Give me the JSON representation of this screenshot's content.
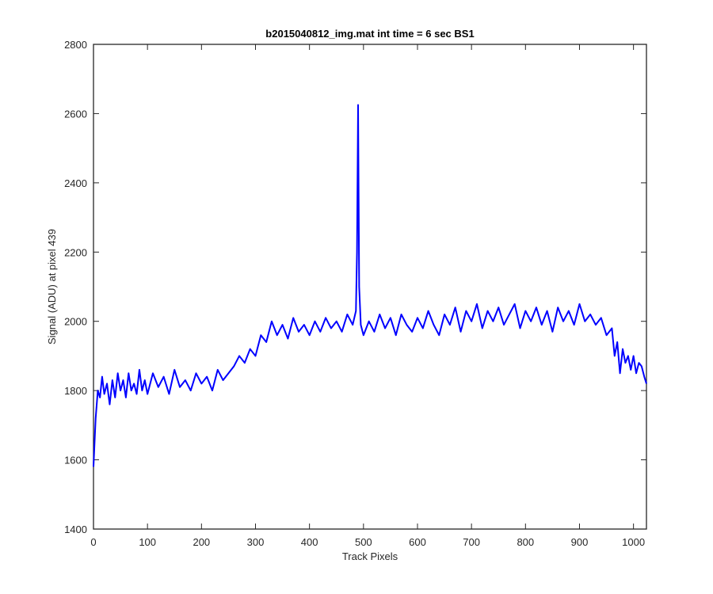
{
  "chart_data": {
    "type": "line",
    "title": "b2015040812_img.mat int time = 6 sec   BS1",
    "xlabel": "Track Pixels",
    "ylabel": "Signal (ADU) at pixel 439",
    "xlim": [
      0,
      1024
    ],
    "ylim": [
      1400,
      2800
    ],
    "xticks": [
      0,
      100,
      200,
      300,
      400,
      500,
      600,
      700,
      800,
      900,
      1000
    ],
    "yticks": [
      1400,
      1600,
      1800,
      2000,
      2200,
      2400,
      2600,
      2800
    ],
    "grid": false,
    "line_color": "#0000ff",
    "series": [
      {
        "x": [
          0,
          2,
          4,
          6,
          8,
          12,
          16,
          20,
          25,
          30,
          35,
          40,
          45,
          50,
          55,
          60,
          65,
          70,
          75,
          80,
          85,
          90,
          95,
          100,
          110,
          120,
          130,
          140,
          150,
          160,
          170,
          180,
          190,
          200,
          210,
          220,
          230,
          240,
          250,
          260,
          270,
          280,
          290,
          300,
          310,
          320,
          330,
          340,
          350,
          360,
          370,
          380,
          390,
          400,
          410,
          420,
          430,
          440,
          450,
          460,
          470,
          480,
          486,
          488,
          490,
          492,
          495,
          500,
          510,
          520,
          530,
          540,
          550,
          560,
          570,
          580,
          590,
          600,
          610,
          620,
          630,
          640,
          650,
          660,
          670,
          680,
          690,
          700,
          710,
          720,
          730,
          740,
          750,
          760,
          770,
          780,
          790,
          800,
          810,
          820,
          830,
          840,
          850,
          860,
          870,
          880,
          890,
          900,
          910,
          920,
          930,
          940,
          950,
          960,
          965,
          970,
          975,
          980,
          985,
          990,
          995,
          1000,
          1005,
          1010,
          1015,
          1020,
          1024
        ],
        "y": [
          1580,
          1650,
          1720,
          1760,
          1800,
          1780,
          1840,
          1790,
          1820,
          1760,
          1830,
          1780,
          1850,
          1800,
          1830,
          1780,
          1850,
          1800,
          1820,
          1790,
          1860,
          1800,
          1830,
          1790,
          1850,
          1810,
          1840,
          1790,
          1860,
          1810,
          1830,
          1800,
          1850,
          1820,
          1840,
          1800,
          1860,
          1830,
          1850,
          1870,
          1900,
          1880,
          1920,
          1900,
          1960,
          1940,
          2000,
          1960,
          1990,
          1950,
          2010,
          1970,
          1990,
          1960,
          2000,
          1970,
          2010,
          1980,
          2000,
          1970,
          2020,
          1990,
          2030,
          2200,
          2625,
          2100,
          1990,
          1960,
          2000,
          1970,
          2020,
          1980,
          2010,
          1960,
          2020,
          1990,
          1970,
          2010,
          1980,
          2030,
          1990,
          1960,
          2020,
          1990,
          2040,
          1970,
          2030,
          2000,
          2050,
          1980,
          2030,
          2000,
          2040,
          1990,
          2020,
          2050,
          1980,
          2030,
          2000,
          2040,
          1990,
          2030,
          1970,
          2040,
          2000,
          2030,
          1990,
          2050,
          2000,
          2020,
          1990,
          2010,
          1960,
          1980,
          1900,
          1940,
          1850,
          1920,
          1880,
          1900,
          1860,
          1900,
          1850,
          1880,
          1870,
          1840,
          1820
        ],
        "annotation_max_peak": {
          "x": 490,
          "y": 2625
        }
      }
    ]
  }
}
